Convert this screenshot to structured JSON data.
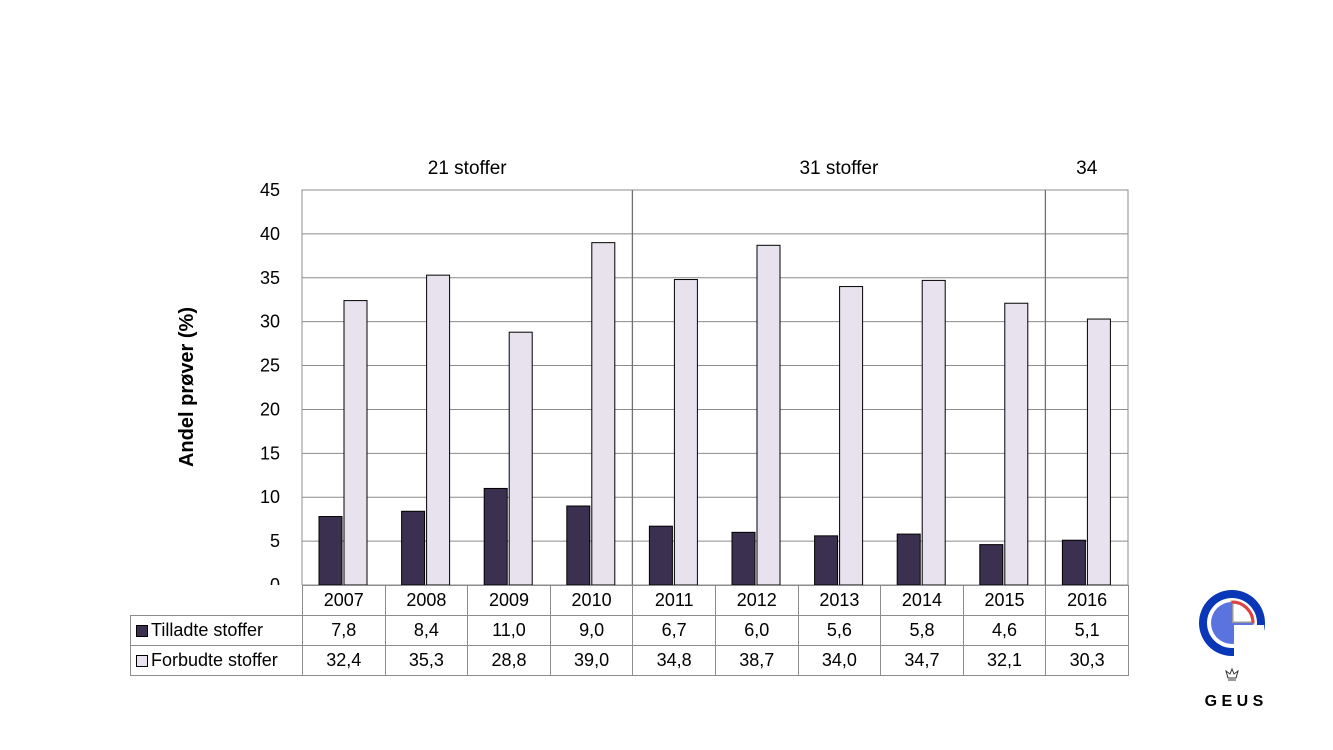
{
  "chart_data": {
    "type": "bar",
    "categories": [
      "2007",
      "2008",
      "2009",
      "2010",
      "2011",
      "2012",
      "2013",
      "2014",
      "2015",
      "2016"
    ],
    "series": [
      {
        "name": "Tilladte stoffer",
        "values": [
          7.8,
          8.4,
          11.0,
          9.0,
          6.7,
          6.0,
          5.6,
          5.8,
          4.6,
          5.1
        ],
        "labels": [
          "7,8",
          "8,4",
          "11,0",
          "9,0",
          "6,7",
          "6,0",
          "5,6",
          "5,8",
          "4,6",
          "5,1"
        ],
        "color": "#3b3050"
      },
      {
        "name": "Forbudte stoffer",
        "values": [
          32.4,
          35.3,
          28.8,
          39.0,
          34.8,
          38.7,
          34.0,
          34.7,
          32.1,
          30.3
        ],
        "labels": [
          "32,4",
          "35,3",
          "28,8",
          "39,0",
          "34,8",
          "38,7",
          "34,0",
          "34,7",
          "32,1",
          "30,3"
        ],
        "color": "#e8e2ee"
      }
    ],
    "ylabel": "Andel prøver (%)",
    "ylim": [
      0,
      45
    ],
    "yticks": [
      0,
      5,
      10,
      15,
      20,
      25,
      30,
      35,
      40,
      45
    ],
    "grid": true,
    "legend": "data-table",
    "groups": [
      {
        "label": "21 stoffer",
        "categories": [
          "2007",
          "2008",
          "2009",
          "2010"
        ]
      },
      {
        "label": "31 stoffer",
        "categories": [
          "2011",
          "2012",
          "2013",
          "2014",
          "2015"
        ]
      },
      {
        "label": "34",
        "categories": [
          "2016"
        ]
      }
    ]
  },
  "logo": {
    "text": "G E U S"
  }
}
